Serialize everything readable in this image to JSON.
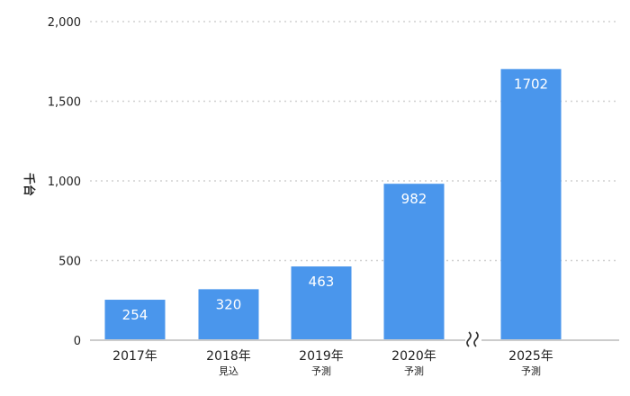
{
  "chart_data": {
    "type": "bar",
    "categories": [
      "2017年",
      "2018年",
      "2019年",
      "2020年",
      "2025年"
    ],
    "category_sublabels": [
      "",
      "見込",
      "予測",
      "予測",
      "予測"
    ],
    "values": [
      254,
      320,
      463,
      982,
      1702
    ],
    "data_labels": [
      "254",
      "320",
      "463",
      "982",
      "1702"
    ],
    "ylabel": "千台",
    "ylim": [
      0,
      2000
    ],
    "yticks": [
      0,
      500,
      1000,
      1500,
      2000
    ],
    "ytick_labels": [
      "0",
      "500",
      "1,000",
      "1,500",
      "2,000"
    ],
    "axis_break_between": [
      "2020年",
      "2025年"
    ],
    "grid": "horizontal dotted",
    "legend": "none",
    "bar_color": "#4A96EC",
    "axis_color": "#cccccc",
    "grid_color": "#d0d0d0"
  }
}
